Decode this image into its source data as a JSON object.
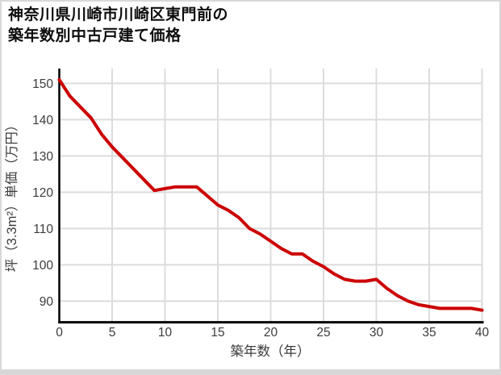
{
  "title": {
    "line1": "神奈川県川崎市川崎区東門前の",
    "line2": "築年数別中古戸建て価格"
  },
  "chart_data": {
    "type": "line",
    "title": "神奈川県川崎市川崎区東門前の築年数別中古戸建て価格",
    "xlabel": "築年数（年）",
    "ylabel": "坪（3.3m²）単価（万円）",
    "x": [
      0,
      1,
      2,
      3,
      4,
      5,
      6,
      7,
      8,
      9,
      10,
      11,
      12,
      13,
      14,
      15,
      16,
      17,
      18,
      19,
      20,
      21,
      22,
      23,
      24,
      25,
      26,
      27,
      28,
      29,
      30,
      31,
      32,
      33,
      34,
      35,
      36,
      37,
      38,
      39,
      40
    ],
    "values": [
      151,
      146.5,
      143.5,
      140.5,
      136,
      132.5,
      129.5,
      126.5,
      123.5,
      120.5,
      121,
      121.5,
      121.5,
      121.5,
      119,
      116.5,
      115,
      113,
      110,
      108.5,
      106.5,
      104.5,
      103,
      103,
      101,
      99.5,
      97.5,
      96,
      95.5,
      95.5,
      96,
      93.5,
      91.5,
      90,
      89,
      88.5,
      88,
      88,
      88,
      88,
      87.5
    ],
    "xlim": [
      0,
      40
    ],
    "ylim": [
      84,
      154
    ],
    "xticks": [
      0,
      5,
      10,
      15,
      20,
      25,
      30,
      35,
      40
    ],
    "yticks": [
      90,
      100,
      110,
      120,
      130,
      140,
      150
    ],
    "grid": true,
    "legend": "none",
    "colors": {
      "line": "#cc0000",
      "grid": "#dcdcdc",
      "axis": "#000000",
      "text": "#3b3b3b",
      "card_border": "#d8d8d8",
      "background": "#ffffff"
    }
  }
}
